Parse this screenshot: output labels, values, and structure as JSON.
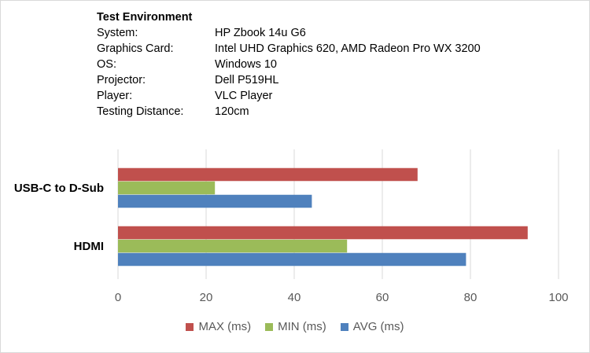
{
  "environment": {
    "title": "Test Environment",
    "rows": [
      {
        "label": "System:",
        "value": "HP Zbook 14u G6"
      },
      {
        "label": "Graphics Card:",
        "value": "Intel UHD Graphics 620, AMD Radeon Pro WX 3200"
      },
      {
        "label": "OS:",
        "value": "Windows 10"
      },
      {
        "label": "Projector:",
        "value": "Dell P519HL"
      },
      {
        "label": "Player:",
        "value": "VLC Player"
      },
      {
        "label": "Testing Distance:",
        "value": "120cm"
      }
    ]
  },
  "chart_data": {
    "type": "bar",
    "orientation": "horizontal",
    "categories": [
      "USB-C to D-Sub",
      "HDMI"
    ],
    "series": [
      {
        "name": "MAX (ms)",
        "color": "#c0504d",
        "values": [
          68,
          93
        ]
      },
      {
        "name": "MIN (ms)",
        "color": "#9bbb59",
        "values": [
          22,
          52
        ]
      },
      {
        "name": "AVG (ms)",
        "color": "#4f81bd",
        "values": [
          44,
          79
        ]
      }
    ],
    "xlim": [
      0,
      100
    ],
    "xticks": [
      0,
      20,
      40,
      60,
      80,
      100
    ],
    "grid": true,
    "legend": "bottom"
  }
}
